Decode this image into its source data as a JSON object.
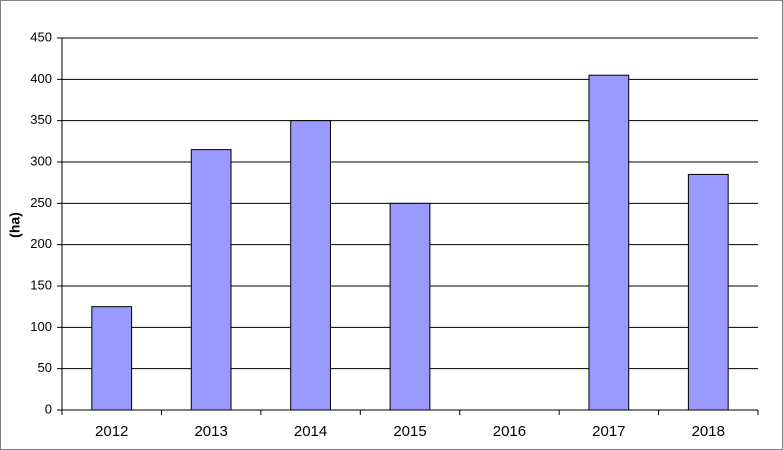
{
  "chart_data": {
    "type": "bar",
    "y_label": "(ha)",
    "categories": [
      "2012",
      "2013",
      "2014",
      "2015",
      "2016",
      "2017",
      "2018"
    ],
    "values": [
      125,
      315,
      350,
      250,
      null,
      405,
      285
    ],
    "color": "#9999ff",
    "ylim": [
      0,
      450
    ],
    "yticks": [
      0,
      50,
      100,
      150,
      200,
      250,
      300,
      350,
      400,
      450
    ],
    "grid": true
  }
}
